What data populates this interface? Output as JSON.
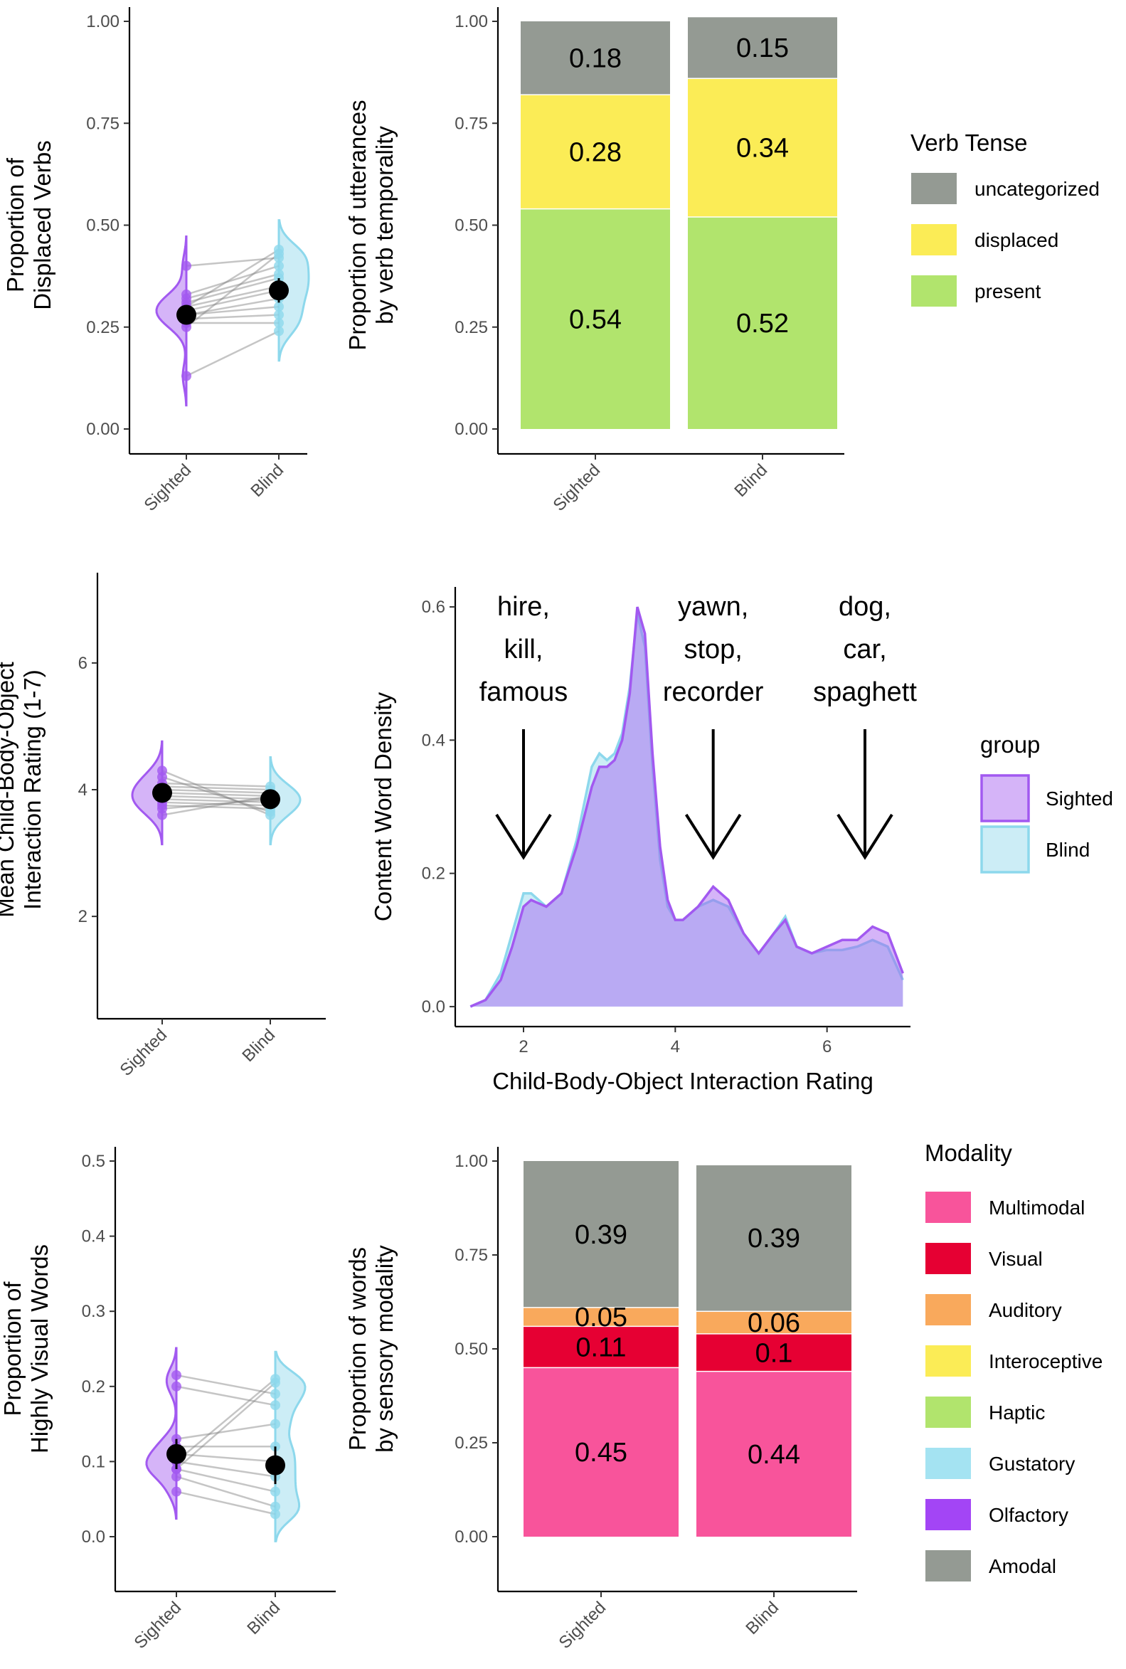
{
  "chart_data": [
    {
      "type": "scatter",
      "subtype": "paired-violin",
      "ylabel": [
        "Proportion of",
        "Displaced Verbs"
      ],
      "categories": [
        "Sighted",
        "Blind"
      ],
      "ylim": [
        0,
        1
      ],
      "y_ticks": [
        "0.00",
        "0.25",
        "0.50",
        "0.75",
        "1.00"
      ],
      "means": [
        0.28,
        0.34
      ],
      "error": [
        0.02,
        0.03
      ],
      "points": [
        [
          0.13,
          0.26,
          0.27,
          0.28,
          0.29,
          0.3,
          0.31,
          0.32,
          0.33,
          0.4,
          0.25,
          0.28,
          0.3
        ],
        [
          0.24,
          0.26,
          0.28,
          0.32,
          0.34,
          0.35,
          0.37,
          0.38,
          0.4,
          0.42,
          0.43,
          0.3,
          0.44
        ]
      ],
      "colors": {
        "Sighted": "#a259f0",
        "Blind": "#8dd8ec"
      }
    },
    {
      "type": "bar",
      "subtype": "stacked",
      "ylabel": [
        "Proportion of utterances",
        "by verb temporality"
      ],
      "categories": [
        "Sighted",
        "Blind"
      ],
      "ylim": [
        0,
        1
      ],
      "y_ticks": [
        "0.00",
        "0.25",
        "0.50",
        "0.75",
        "1.00"
      ],
      "series": [
        {
          "name": "present",
          "values": [
            0.54,
            0.52
          ],
          "labels": [
            "0.54",
            "0.52"
          ],
          "color": "#b1e46d"
        },
        {
          "name": "displaced",
          "values": [
            0.28,
            0.34
          ],
          "labels": [
            "0.28",
            "0.34"
          ],
          "color": "#fbec56"
        },
        {
          "name": "uncategorized",
          "values": [
            0.18,
            0.15
          ],
          "labels": [
            "0.18",
            "0.15"
          ],
          "color": "#949a93"
        }
      ],
      "legend": {
        "title": "Verb Tense",
        "items": [
          "uncategorized",
          "displaced",
          "present"
        ],
        "position": "right"
      }
    },
    {
      "type": "scatter",
      "subtype": "paired-violin",
      "ylabel": [
        "Mean Child-Body-Object",
        "Interaction Rating (1-7)"
      ],
      "categories": [
        "Sighted",
        "Blind"
      ],
      "ylim": [
        0.8,
        7.2
      ],
      "y_ticks": [
        "2",
        "4",
        "6"
      ],
      "means": [
        3.95,
        3.85
      ],
      "error": [
        0.06,
        0.05
      ],
      "points": [
        [
          3.75,
          3.8,
          3.85,
          3.9,
          3.95,
          4.0,
          4.05,
          4.1,
          4.2,
          4.3,
          3.7,
          3.6
        ],
        [
          3.7,
          3.75,
          3.8,
          3.85,
          3.9,
          3.95,
          4.0,
          4.05,
          3.65,
          3.6,
          3.85,
          3.9
        ]
      ],
      "colors": {
        "Sighted": "#a259f0",
        "Blind": "#8dd8ec"
      }
    },
    {
      "type": "area",
      "subtype": "density",
      "xlabel": "Child-Body-Object Interaction Rating",
      "ylabel": "Content Word Density",
      "xlim": [
        1.1,
        7.1
      ],
      "ylim": [
        -0.03,
        0.63
      ],
      "x_ticks": [
        "2",
        "4",
        "6"
      ],
      "y_ticks": [
        "0.0",
        "0.2",
        "0.4",
        "0.6"
      ],
      "series": [
        {
          "name": "Sighted",
          "color": "#a259f0",
          "x": [
            1.3,
            1.5,
            1.7,
            1.85,
            2.0,
            2.1,
            2.3,
            2.5,
            2.7,
            2.9,
            3.0,
            3.1,
            3.2,
            3.3,
            3.4,
            3.5,
            3.6,
            3.7,
            3.8,
            3.9,
            4.0,
            4.1,
            4.3,
            4.5,
            4.7,
            4.9,
            5.1,
            5.3,
            5.45,
            5.6,
            5.8,
            6.0,
            6.2,
            6.4,
            6.6,
            6.8,
            7.0
          ],
          "y": [
            0.0,
            0.01,
            0.04,
            0.09,
            0.15,
            0.16,
            0.15,
            0.17,
            0.24,
            0.33,
            0.36,
            0.36,
            0.37,
            0.4,
            0.47,
            0.6,
            0.56,
            0.38,
            0.24,
            0.16,
            0.13,
            0.13,
            0.15,
            0.18,
            0.16,
            0.11,
            0.08,
            0.11,
            0.13,
            0.09,
            0.08,
            0.09,
            0.1,
            0.1,
            0.12,
            0.11,
            0.05
          ]
        },
        {
          "name": "Blind",
          "color": "#8dd8ec",
          "x": [
            1.3,
            1.5,
            1.7,
            1.85,
            2.0,
            2.1,
            2.3,
            2.5,
            2.7,
            2.9,
            3.0,
            3.1,
            3.2,
            3.3,
            3.4,
            3.5,
            3.6,
            3.7,
            3.8,
            3.9,
            4.0,
            4.1,
            4.3,
            4.5,
            4.7,
            4.9,
            5.1,
            5.3,
            5.45,
            5.6,
            5.8,
            6.0,
            6.2,
            6.4,
            6.6,
            6.8,
            7.0
          ],
          "y": [
            0.0,
            0.01,
            0.05,
            0.11,
            0.17,
            0.17,
            0.15,
            0.17,
            0.25,
            0.36,
            0.38,
            0.37,
            0.38,
            0.41,
            0.48,
            0.59,
            0.54,
            0.36,
            0.22,
            0.15,
            0.13,
            0.13,
            0.15,
            0.16,
            0.15,
            0.11,
            0.08,
            0.11,
            0.135,
            0.09,
            0.08,
            0.085,
            0.085,
            0.09,
            0.1,
            0.09,
            0.04
          ]
        }
      ],
      "annotations": [
        {
          "x": 2.0,
          "lines": [
            "hire,",
            "kill,",
            "famous"
          ]
        },
        {
          "x": 4.5,
          "lines": [
            "yawn,",
            "stop,",
            "recorder"
          ]
        },
        {
          "x": 6.5,
          "lines": [
            "dog,",
            "car,",
            "spaghett"
          ]
        }
      ],
      "legend": {
        "title": "group",
        "items": [
          "Sighted",
          "Blind"
        ],
        "position": "right"
      }
    },
    {
      "type": "scatter",
      "subtype": "paired-violin",
      "ylabel": [
        "Proportion of",
        "Highly Visual Words"
      ],
      "categories": [
        "Sighted",
        "Blind"
      ],
      "ylim": [
        0,
        0.5
      ],
      "y_ticks": [
        "0.0",
        "0.1",
        "0.2",
        "0.3",
        "0.4",
        "0.5"
      ],
      "means": [
        0.11,
        0.095
      ],
      "error": [
        0.02,
        0.025
      ],
      "points": [
        [
          0.06,
          0.08,
          0.09,
          0.1,
          0.11,
          0.12,
          0.13,
          0.2,
          0.215,
          0.09,
          0.1
        ],
        [
          0.03,
          0.04,
          0.06,
          0.08,
          0.1,
          0.12,
          0.15,
          0.175,
          0.19,
          0.205,
          0.21
        ]
      ],
      "colors": {
        "Sighted": "#a259f0",
        "Blind": "#8dd8ec"
      }
    },
    {
      "type": "bar",
      "subtype": "stacked",
      "ylabel": [
        "Proportion of words",
        "by sensory modality"
      ],
      "categories": [
        "Sighted",
        "Blind"
      ],
      "ylim": [
        0,
        1
      ],
      "y_ticks": [
        "0.00",
        "0.25",
        "0.50",
        "0.75",
        "1.00"
      ],
      "series": [
        {
          "name": "Multimodal",
          "values": [
            0.45,
            0.44
          ],
          "labels": [
            "0.45",
            "0.44"
          ],
          "color": "#f8549b"
        },
        {
          "name": "Visual",
          "values": [
            0.11,
            0.1
          ],
          "labels": [
            "0.11",
            "0.1"
          ],
          "color": "#e60033"
        },
        {
          "name": "Auditory",
          "values": [
            0.05,
            0.06
          ],
          "labels": [
            "0.05",
            "0.06"
          ],
          "color": "#f9a95c"
        },
        {
          "name": "Interoceptive",
          "values": [
            0.0,
            0.0
          ],
          "labels": [
            "",
            ""
          ],
          "color": "#fbec56"
        },
        {
          "name": "Haptic",
          "values": [
            0.0,
            0.0
          ],
          "labels": [
            "",
            ""
          ],
          "color": "#b1e46d"
        },
        {
          "name": "Gustatory",
          "values": [
            0.0,
            0.0
          ],
          "labels": [
            "",
            ""
          ],
          "color": "#a4e3f2"
        },
        {
          "name": "Olfactory",
          "values": [
            0.0,
            0.0
          ],
          "labels": [
            "",
            ""
          ],
          "color": "#a345f5"
        },
        {
          "name": "Amodal",
          "values": [
            0.39,
            0.39
          ],
          "labels": [
            "0.39",
            "0.39"
          ],
          "color": "#949a93"
        }
      ],
      "legend": {
        "title": "Modality",
        "items": [
          "Multimodal",
          "Visual",
          "Auditory",
          "Interoceptive",
          "Haptic",
          "Gustatory",
          "Olfactory",
          "Amodal"
        ],
        "position": "right"
      }
    }
  ]
}
